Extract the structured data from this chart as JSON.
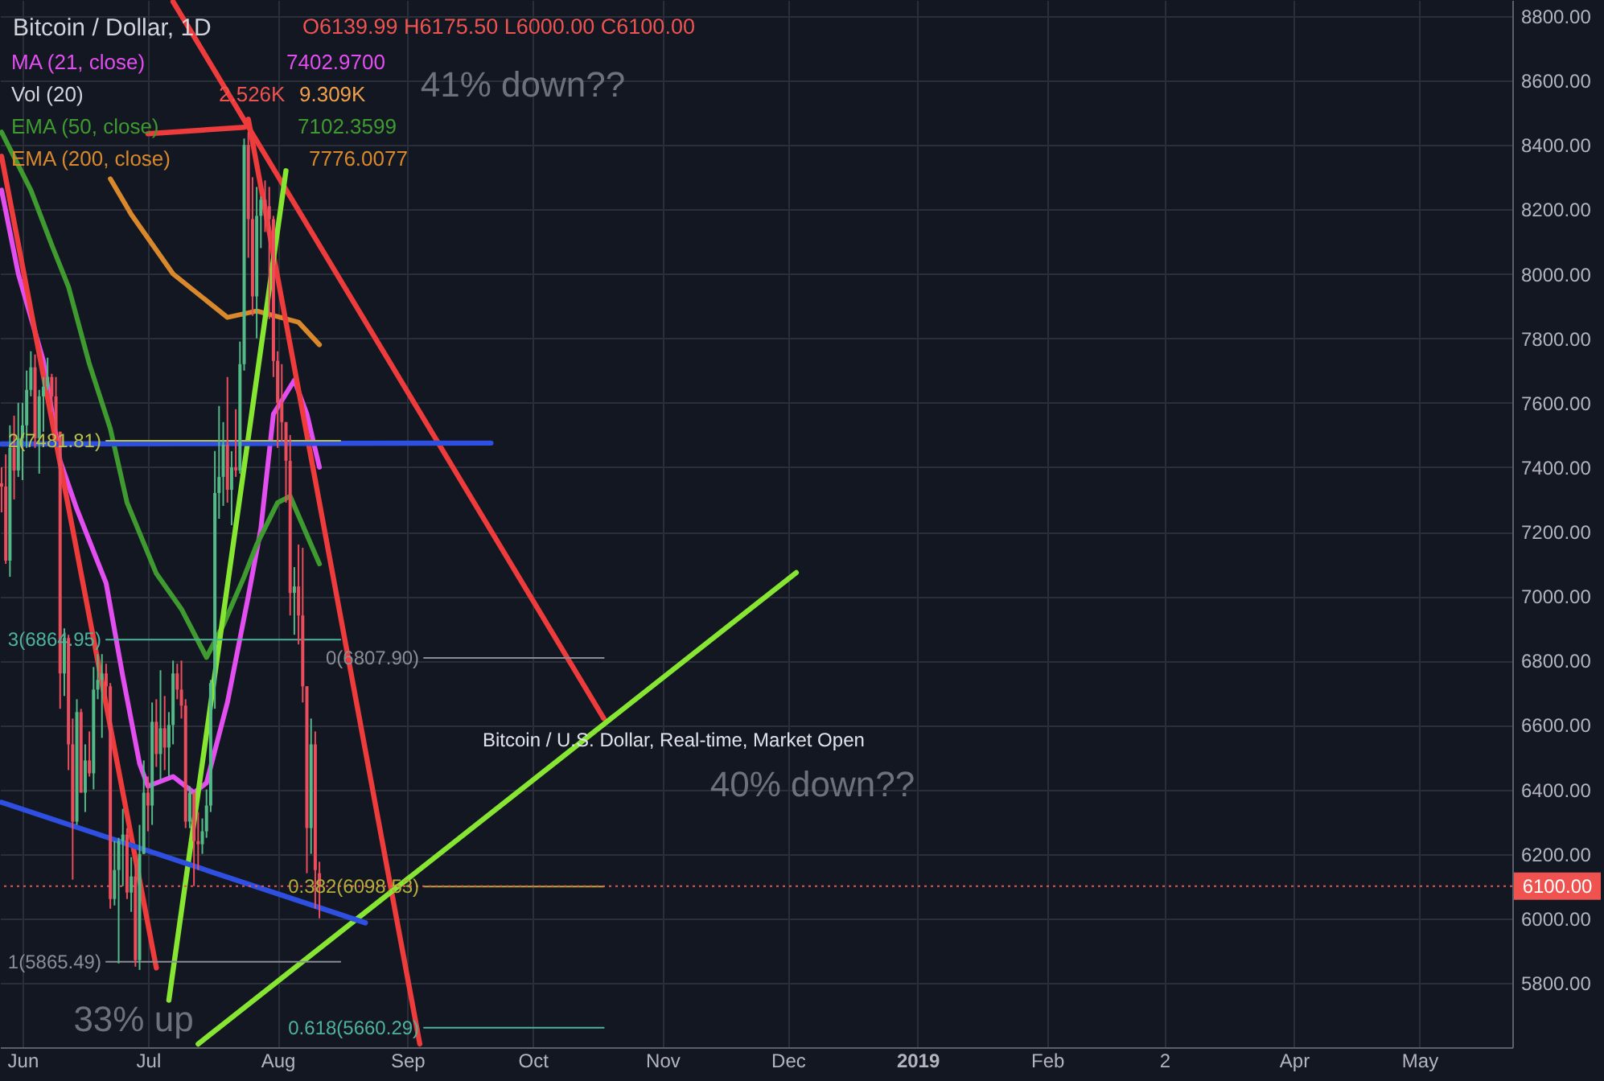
{
  "chart_data": {
    "type": "candlestick",
    "title": "Bitcoin / Dollar, 1D",
    "subtitle": "O6139.99 H6175.50 L6000.00 C6100.00",
    "x": [
      "2018-05-27",
      "2018-05-28",
      "2018-05-29",
      "2018-05-30",
      "2018-05-31",
      "2018-06-01",
      "2018-06-02",
      "2018-06-03",
      "2018-06-04",
      "2018-06-05",
      "2018-06-06",
      "2018-06-07",
      "2018-06-08",
      "2018-06-09",
      "2018-06-10",
      "2018-06-11",
      "2018-06-12",
      "2018-06-13",
      "2018-06-14",
      "2018-06-15",
      "2018-06-16",
      "2018-06-17",
      "2018-06-18",
      "2018-06-19",
      "2018-06-20",
      "2018-06-21",
      "2018-06-22",
      "2018-06-23",
      "2018-06-24",
      "2018-06-25",
      "2018-06-26",
      "2018-06-27",
      "2018-06-28",
      "2018-06-29",
      "2018-06-30",
      "2018-07-01",
      "2018-07-02",
      "2018-07-03",
      "2018-07-04",
      "2018-07-05",
      "2018-07-06",
      "2018-07-07",
      "2018-07-08",
      "2018-07-09",
      "2018-07-10",
      "2018-07-11",
      "2018-07-12",
      "2018-07-13",
      "2018-07-14",
      "2018-07-15",
      "2018-07-16",
      "2018-07-17",
      "2018-07-18",
      "2018-07-19",
      "2018-07-20",
      "2018-07-21",
      "2018-07-22",
      "2018-07-23",
      "2018-07-24",
      "2018-07-25",
      "2018-07-26",
      "2018-07-27",
      "2018-07-28",
      "2018-07-29",
      "2018-07-30",
      "2018-07-31",
      "2018-08-01",
      "2018-08-02",
      "2018-08-03",
      "2018-08-04",
      "2018-08-05",
      "2018-08-06",
      "2018-08-07",
      "2018-08-08",
      "2018-08-09",
      "2018-08-10",
      "2018-08-11"
    ],
    "ohlc": [
      [
        7350,
        7400,
        7260,
        7340
      ],
      [
        7340,
        7440,
        7100,
        7110
      ],
      [
        7110,
        7530,
        7060,
        7460
      ],
      [
        7460,
        7560,
        7300,
        7390
      ],
      [
        7390,
        7600,
        7370,
        7490
      ],
      [
        7490,
        7600,
        7360,
        7530
      ],
      [
        7530,
        7700,
        7460,
        7640
      ],
      [
        7640,
        7760,
        7620,
        7710
      ],
      [
        7710,
        7750,
        7460,
        7490
      ],
      [
        7490,
        7640,
        7380,
        7620
      ],
      [
        7620,
        7680,
        7510,
        7650
      ],
      [
        7650,
        7740,
        7640,
        7680
      ],
      [
        7680,
        7690,
        7570,
        7620
      ],
      [
        7620,
        7680,
        7500,
        7510
      ],
      [
        7510,
        7510,
        6650,
        6760
      ],
      [
        6760,
        6900,
        6690,
        6870
      ],
      [
        6870,
        6880,
        6460,
        6540
      ],
      [
        6540,
        6620,
        6120,
        6300
      ],
      [
        6300,
        6680,
        6290,
        6640
      ],
      [
        6640,
        6650,
        6390,
        6390
      ],
      [
        6390,
        6540,
        6330,
        6490
      ],
      [
        6490,
        6580,
        6440,
        6450
      ],
      [
        6450,
        6780,
        6400,
        6710
      ],
      [
        6710,
        6820,
        6680,
        6740
      ],
      [
        6740,
        6820,
        6560,
        6760
      ],
      [
        6760,
        6790,
        6680,
        6720
      ],
      [
        6720,
        6730,
        6030,
        6060
      ],
      [
        6060,
        6240,
        6040,
        6150
      ],
      [
        6150,
        6250,
        5860,
        6240
      ],
      [
        6240,
        6340,
        6100,
        6260
      ],
      [
        6260,
        6280,
        6060,
        6080
      ],
      [
        6080,
        6190,
        6020,
        6130
      ],
      [
        6130,
        6170,
        5850,
        5870
      ],
      [
        5870,
        6290,
        5840,
        6200
      ],
      [
        6200,
        6490,
        6200,
        6390
      ],
      [
        6390,
        6440,
        6270,
        6350
      ],
      [
        6350,
        6670,
        6290,
        6610
      ],
      [
        6610,
        6680,
        6470,
        6510
      ],
      [
        6510,
        6770,
        6430,
        6590
      ],
      [
        6590,
        6690,
        6460,
        6530
      ],
      [
        6530,
        6640,
        6440,
        6600
      ],
      [
        6600,
        6800,
        6540,
        6760
      ],
      [
        6760,
        6790,
        6680,
        6710
      ],
      [
        6710,
        6800,
        6620,
        6660
      ],
      [
        6660,
        6680,
        6280,
        6300
      ],
      [
        6300,
        6410,
        6280,
        6390
      ],
      [
        6390,
        6390,
        6100,
        6240
      ],
      [
        6240,
        6330,
        6150,
        6230
      ],
      [
        6230,
        6310,
        6200,
        6270
      ],
      [
        6270,
        6400,
        6250,
        6350
      ],
      [
        6350,
        6740,
        6330,
        6730
      ],
      [
        6730,
        7450,
        6650,
        7320
      ],
      [
        7320,
        7590,
        7240,
        7370
      ],
      [
        7370,
        7540,
        7280,
        7470
      ],
      [
        7470,
        7680,
        7290,
        7330
      ],
      [
        7330,
        7450,
        7220,
        7400
      ],
      [
        7400,
        7580,
        7370,
        7390
      ],
      [
        7390,
        7790,
        7380,
        7720
      ],
      [
        7720,
        8420,
        7700,
        8400
      ],
      [
        8400,
        8440,
        8050,
        8170
      ],
      [
        8170,
        8300,
        7870,
        7930
      ],
      [
        7930,
        8270,
        7800,
        8180
      ],
      [
        8180,
        8240,
        8080,
        8230
      ],
      [
        8230,
        8290,
        8130,
        8210
      ],
      [
        8210,
        8270,
        7860,
        8170
      ],
      [
        8170,
        8180,
        7680,
        7730
      ],
      [
        7730,
        7760,
        7460,
        7600
      ],
      [
        7600,
        7720,
        7480,
        7540
      ],
      [
        7540,
        7540,
        7290,
        7420
      ],
      [
        7420,
        7500,
        6940,
        7010
      ],
      [
        7010,
        7090,
        6880,
        7030
      ],
      [
        7030,
        7160,
        6850,
        6940
      ],
      [
        6940,
        7150,
        6670,
        6720
      ],
      [
        6720,
        6720,
        6140,
        6280
      ],
      [
        6280,
        6620,
        6200,
        6540
      ],
      [
        6540,
        6580,
        6030,
        6150
      ],
      [
        6139.99,
        6175.5,
        6000,
        6100
      ]
    ],
    "colors": [
      "#eb4d5c",
      "#eb4d5c",
      "#53b987",
      "#eb4d5c",
      "#53b987",
      "#53b987",
      "#53b987",
      "#53b987",
      "#eb4d5c",
      "#53b987",
      "#53b987",
      "#53b987",
      "#eb4d5c",
      "#eb4d5c",
      "#eb4d5c",
      "#53b987",
      "#eb4d5c",
      "#eb4d5c",
      "#53b987",
      "#eb4d5c",
      "#53b987",
      "#eb4d5c",
      "#53b987",
      "#53b987",
      "#53b987",
      "#eb4d5c",
      "#eb4d5c",
      "#53b987",
      "#53b987",
      "#53b987",
      "#eb4d5c",
      "#53b987",
      "#eb4d5c",
      "#53b987",
      "#53b987",
      "#eb4d5c",
      "#53b987",
      "#eb4d5c",
      "#53b987",
      "#eb4d5c",
      "#53b987",
      "#53b987",
      "#eb4d5c",
      "#eb4d5c",
      "#eb4d5c",
      "#53b987",
      "#eb4d5c",
      "#eb4d5c",
      "#53b987",
      "#53b987",
      "#53b987",
      "#53b987",
      "#53b987",
      "#53b987",
      "#eb4d5c",
      "#53b987",
      "#eb4d5c",
      "#53b987",
      "#53b987",
      "#eb4d5c",
      "#eb4d5c",
      "#53b987",
      "#53b987",
      "#eb4d5c",
      "#eb4d5c",
      "#eb4d5c",
      "#eb4d5c",
      "#eb4d5c",
      "#eb4d5c",
      "#eb4d5c",
      "#53b987",
      "#eb4d5c",
      "#eb4d5c",
      "#eb4d5c",
      "#53b987",
      "#eb4d5c",
      "#eb4d5c"
    ],
    "series": [
      {
        "name": "MA (21, close)",
        "type": "line",
        "color": "#e34ef0",
        "x": [
          "2018-05-27",
          "2018-05-31",
          "2018-06-06",
          "2018-06-10",
          "2018-06-14",
          "2018-06-21",
          "2018-06-25",
          "2018-06-29",
          "2018-07-01",
          "2018-07-07",
          "2018-07-12",
          "2018-07-15",
          "2018-07-20",
          "2018-07-25",
          "2018-07-28",
          "2018-07-31",
          "2018-08-05",
          "2018-08-08",
          "2018-08-11"
        ],
        "values": [
          8260,
          8000,
          7730,
          7420,
          7270,
          7040,
          6750,
          6480,
          6410,
          6440,
          6390,
          6420,
          6670,
          7000,
          7210,
          7565,
          7670,
          7565,
          7400
        ]
      },
      {
        "name": "EMA (50, close)",
        "type": "line",
        "color": "#3f9a30",
        "x": [
          "2018-05-27",
          "2018-06-03",
          "2018-06-08",
          "2018-06-12",
          "2018-06-17",
          "2018-06-22",
          "2018-06-26",
          "2018-07-03",
          "2018-07-09",
          "2018-07-15",
          "2018-07-19",
          "2018-07-24",
          "2018-07-27",
          "2018-08-01",
          "2018-08-04",
          "2018-08-11"
        ],
        "values": [
          8440,
          8260,
          8090,
          7960,
          7720,
          7520,
          7290,
          7070,
          6960,
          6810,
          6910,
          7060,
          7160,
          7290,
          7310,
          7100
        ]
      },
      {
        "name": "EMA (200, close)",
        "type": "line",
        "color": "#d9892c",
        "x": [
          "2018-06-22",
          "2018-06-27",
          "2018-07-07",
          "2018-07-20",
          "2018-07-27",
          "2018-08-06",
          "2018-08-11"
        ],
        "values": [
          8295,
          8185,
          8000,
          7865,
          7885,
          7850,
          7780
        ]
      },
      {
        "type": "line",
        "color": "#ee3b3b",
        "x": [
          "2018-07-07",
          "2018-10-18"
        ],
        "values": [
          8845,
          6620
        ]
      },
      {
        "type": "line",
        "color": "#ee3b3b",
        "x": [
          "2018-07-01",
          "2018-07-24"
        ],
        "values": [
          8435,
          8455
        ]
      },
      {
        "type": "line",
        "color": "#ee3b3b",
        "x": [
          "2018-07-25",
          "2018-09-04"
        ],
        "values": [
          8480,
          5610
        ]
      },
      {
        "type": "line",
        "color": "#ee3b3b",
        "x": [
          "2018-05-27",
          "2018-07-03"
        ],
        "values": [
          8365,
          5846
        ]
      },
      {
        "type": "line",
        "color": "#86e632",
        "x": [
          "2018-07-13",
          "2018-12-03"
        ],
        "values": [
          5610,
          7073
        ]
      },
      {
        "type": "line",
        "color": "#86e632",
        "x": [
          "2018-07-06",
          "2018-08-03"
        ],
        "values": [
          5746,
          8320
        ]
      },
      {
        "type": "line",
        "color": "#2e4fe0",
        "x": [
          "2018-05-27",
          "2018-09-21"
        ],
        "values": [
          7472,
          7475
        ]
      },
      {
        "type": "line",
        "color": "#2e4fe0",
        "x": [
          "2018-05-27",
          "2018-08-22"
        ],
        "values": [
          6360,
          5986
        ]
      },
      {
        "type": "line",
        "color": "#8a8d96",
        "x": [
          "2018-09-05",
          "2018-10-18"
        ],
        "values": [
          6807.9,
          6807.9
        ],
        "value_labels": [
          "0(6807.90)",
          null
        ]
      },
      {
        "type": "line",
        "color": "#b5ad3a",
        "x": [
          "2018-09-05",
          "2018-10-18"
        ],
        "values": [
          6098.53,
          6098.53
        ],
        "value_labels": [
          "0.382(6098.53)",
          null
        ]
      },
      {
        "type": "line",
        "color": "#4fb39c",
        "x": [
          "2018-09-05",
          "2018-10-18"
        ],
        "values": [
          5660.29,
          5660.29
        ],
        "value_labels": [
          "0.618(5660.29)",
          null
        ]
      },
      {
        "type": "line",
        "color": "#8a8d96",
        "x": [
          "2018-06-21",
          "2018-08-16"
        ],
        "values": [
          5865.49,
          5865.49
        ],
        "value_labels": [
          "1(5865.49)",
          null
        ]
      },
      {
        "type": "line",
        "color": "#4fb39c",
        "x": [
          "2018-06-21",
          "2018-08-16"
        ],
        "values": [
          6864.95,
          6864.95
        ],
        "value_labels": [
          "3(6864.95)",
          null
        ]
      },
      {
        "type": "line",
        "color": "#b9c24a",
        "x": [
          "2018-06-21",
          "2018-08-16"
        ],
        "values": [
          7481.81,
          7481.81
        ],
        "value_labels": [
          "2(7481.81)",
          null
        ]
      }
    ],
    "xlim": [
      "2018-05-26T15:00",
      "2019-05-23T05:00"
    ],
    "xticks": [
      {
        "value": "2018-06-01",
        "label": "Jun"
      },
      {
        "value": "2018-07-01",
        "label": "Jul"
      },
      {
        "value": "2018-08-01",
        "label": "Aug"
      },
      {
        "value": "2018-09-01",
        "label": "Sep"
      },
      {
        "value": "2018-10-01",
        "label": "Oct"
      },
      {
        "value": "2018-11-01",
        "label": "Nov"
      },
      {
        "value": "2018-12-01",
        "label": "Dec"
      },
      {
        "value": "2019-01-01",
        "label": "2019"
      },
      {
        "value": "2019-02-01",
        "label": "Feb"
      },
      {
        "value": "2019-03-01",
        "label": "2"
      },
      {
        "value": "2019-04-01",
        "label": "Apr"
      },
      {
        "value": "2019-05-01",
        "label": "May"
      }
    ],
    "ylim": [
      5600,
      8850
    ],
    "yticks": [
      {
        "value": 5800,
        "label": "5800.00"
      },
      {
        "value": 6000,
        "label": "6000.00"
      },
      {
        "value": 6200,
        "label": "6200.00"
      },
      {
        "value": 6400,
        "label": "6400.00"
      },
      {
        "value": 6600,
        "label": "6600.00"
      },
      {
        "value": 6800,
        "label": "6800.00"
      },
      {
        "value": 7000,
        "label": "7000.00"
      },
      {
        "value": 7200,
        "label": "7200.00"
      },
      {
        "value": 7400,
        "label": "7400.00"
      },
      {
        "value": 7600,
        "label": "7600.00"
      },
      {
        "value": 7800,
        "label": "7800.00"
      },
      {
        "value": 8000,
        "label": "8000.00"
      },
      {
        "value": 8200,
        "label": "8200.00"
      },
      {
        "value": 8400,
        "label": "8400.00"
      },
      {
        "value": 8600,
        "label": "8600.00"
      },
      {
        "value": 8800,
        "label": "8800.00"
      }
    ],
    "ref_lines": [
      {
        "axis": "y",
        "value": 6100,
        "label": "6100.00",
        "color": "#ef5350",
        "line_style": "dotted"
      }
    ],
    "annotations": [
      "7402.9700",
      "Vol (20)",
      "2.526K",
      "9.309K",
      "7102.3599",
      "7776.0077",
      "41% down??",
      "Bitcoin / U.S. Dollar, Real-time, Market Open",
      "40% down??",
      "33% up"
    ],
    "grid": true,
    "legend": "top left"
  }
}
